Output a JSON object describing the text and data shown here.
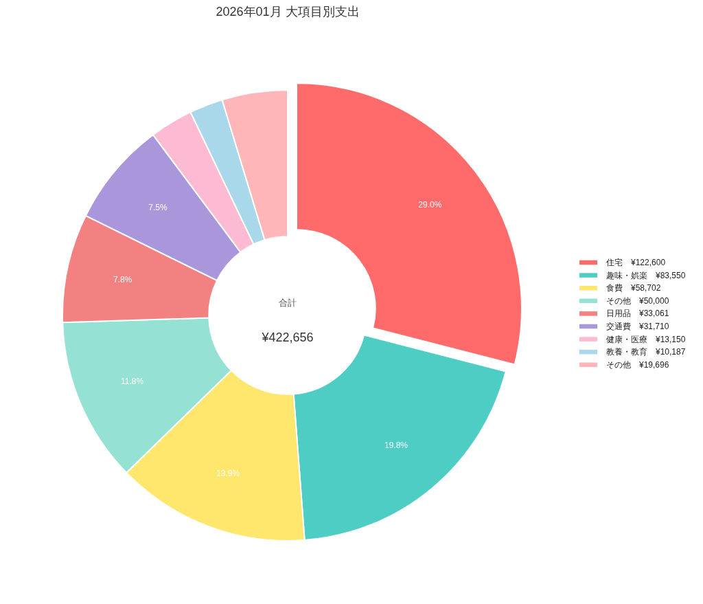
{
  "chart_data": {
    "type": "donut",
    "title": "2026年01月 大項目別支出",
    "categories": [
      "住宅　¥122,600",
      "趣味・娯楽　¥83,550",
      "食費　¥58,702",
      "その他　¥50,000",
      "日用品　¥33,061",
      "交通費　¥31,710",
      "健康・医療　¥13,150",
      "教養・教育　¥10,187",
      "その他　¥19,696"
    ],
    "values": [
      29.0,
      19.8,
      13.9,
      11.8,
      7.8,
      7.5,
      3.1,
      2.4,
      4.7
    ],
    "colors": [
      "#ff6b6b",
      "#4ecdc4",
      "#ffe66d",
      "#95e1d3",
      "#f38181",
      "#aa96da",
      "#fcbad3",
      "#a8d8ea",
      "#ffb6b9"
    ],
    "value_labels": [
      "29.0%",
      "19.8%",
      "13.9%",
      "11.8%",
      "7.8%",
      "7.5%",
      null,
      null,
      null
    ],
    "annotations": [
      "合計",
      "¥422,656"
    ],
    "legend": "right"
  }
}
